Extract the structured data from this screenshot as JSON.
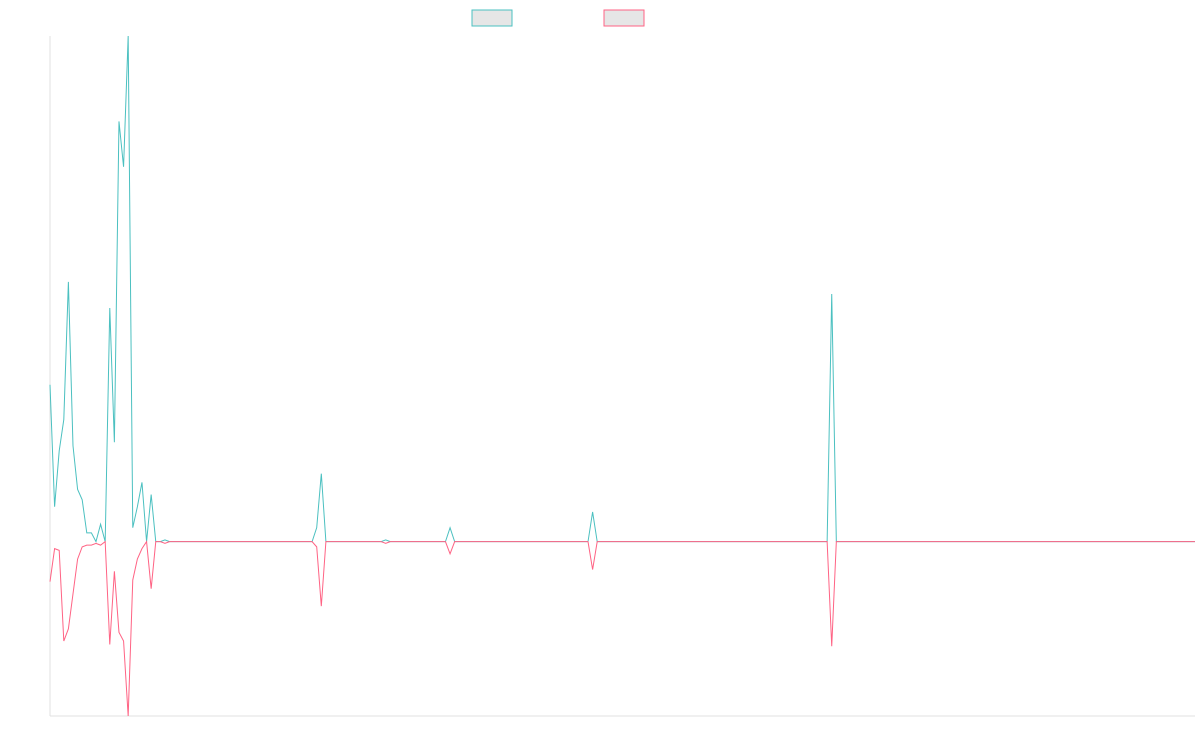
{
  "chart_data": {
    "type": "line",
    "title": "",
    "xlabel": "",
    "ylabel": "",
    "legend_position": "top-center",
    "grid": false,
    "x_count": 250,
    "ylim": [
      -1,
      2.9
    ],
    "series": [
      {
        "name": "",
        "color": "#4bc0c0",
        "fill": "#e6e6e6",
        "points": [
          [
            0,
            0.9
          ],
          [
            1,
            0.2
          ],
          [
            2,
            0.52
          ],
          [
            3,
            0.7
          ],
          [
            4,
            1.49
          ],
          [
            5,
            0.55
          ],
          [
            6,
            0.3
          ],
          [
            7,
            0.24
          ],
          [
            8,
            0.05
          ],
          [
            9,
            0.05
          ],
          [
            10,
            0.0
          ],
          [
            11,
            0.1
          ],
          [
            12,
            0.0
          ],
          [
            13,
            1.34
          ],
          [
            14,
            0.57
          ],
          [
            15,
            2.41
          ],
          [
            16,
            2.15
          ],
          [
            17,
            2.9
          ],
          [
            18,
            0.08
          ],
          [
            19,
            0.2
          ],
          [
            20,
            0.34
          ],
          [
            21,
            0.0
          ],
          [
            22,
            0.27
          ],
          [
            23,
            0.0
          ],
          [
            24,
            0.0
          ],
          [
            25,
            0.01
          ],
          [
            26,
            0.0
          ],
          [
            57,
            0.0
          ],
          [
            58,
            0.08
          ],
          [
            59,
            0.39
          ],
          [
            60,
            0.0
          ],
          [
            72,
            0.0
          ],
          [
            73,
            0.01
          ],
          [
            74,
            0.0
          ],
          [
            86,
            0.0
          ],
          [
            87,
            0.08
          ],
          [
            88,
            0.0
          ],
          [
            117,
            0.0
          ],
          [
            118,
            0.17
          ],
          [
            119,
            0.0
          ],
          [
            169,
            0.0
          ],
          [
            170,
            1.42
          ],
          [
            171,
            0.0
          ],
          [
            249,
            0.0
          ]
        ]
      },
      {
        "name": "",
        "color": "#ff6384",
        "fill": "#e6e6e6",
        "points": [
          [
            0,
            -0.23
          ],
          [
            1,
            -0.04
          ],
          [
            2,
            -0.05
          ],
          [
            3,
            -0.57
          ],
          [
            4,
            -0.5
          ],
          [
            5,
            -0.3
          ],
          [
            6,
            -0.1
          ],
          [
            7,
            -0.03
          ],
          [
            8,
            -0.02
          ],
          [
            9,
            -0.02
          ],
          [
            10,
            -0.01
          ],
          [
            11,
            -0.02
          ],
          [
            12,
            0.0
          ],
          [
            13,
            -0.59
          ],
          [
            14,
            -0.17
          ],
          [
            15,
            -0.52
          ],
          [
            16,
            -0.57
          ],
          [
            17,
            -1.0
          ],
          [
            18,
            -0.22
          ],
          [
            19,
            -0.1
          ],
          [
            20,
            -0.04
          ],
          [
            21,
            0.0
          ],
          [
            22,
            -0.27
          ],
          [
            23,
            0.0
          ],
          [
            24,
            0.0
          ],
          [
            25,
            -0.01
          ],
          [
            26,
            0.0
          ],
          [
            57,
            0.0
          ],
          [
            58,
            -0.03
          ],
          [
            59,
            -0.37
          ],
          [
            60,
            0.0
          ],
          [
            72,
            0.0
          ],
          [
            73,
            -0.01
          ],
          [
            74,
            0.0
          ],
          [
            86,
            0.0
          ],
          [
            87,
            -0.07
          ],
          [
            88,
            0.0
          ],
          [
            117,
            0.0
          ],
          [
            118,
            -0.16
          ],
          [
            119,
            0.0
          ],
          [
            169,
            0.0
          ],
          [
            170,
            -0.6
          ],
          [
            171,
            0.0
          ],
          [
            249,
            0.0
          ]
        ]
      }
    ]
  }
}
